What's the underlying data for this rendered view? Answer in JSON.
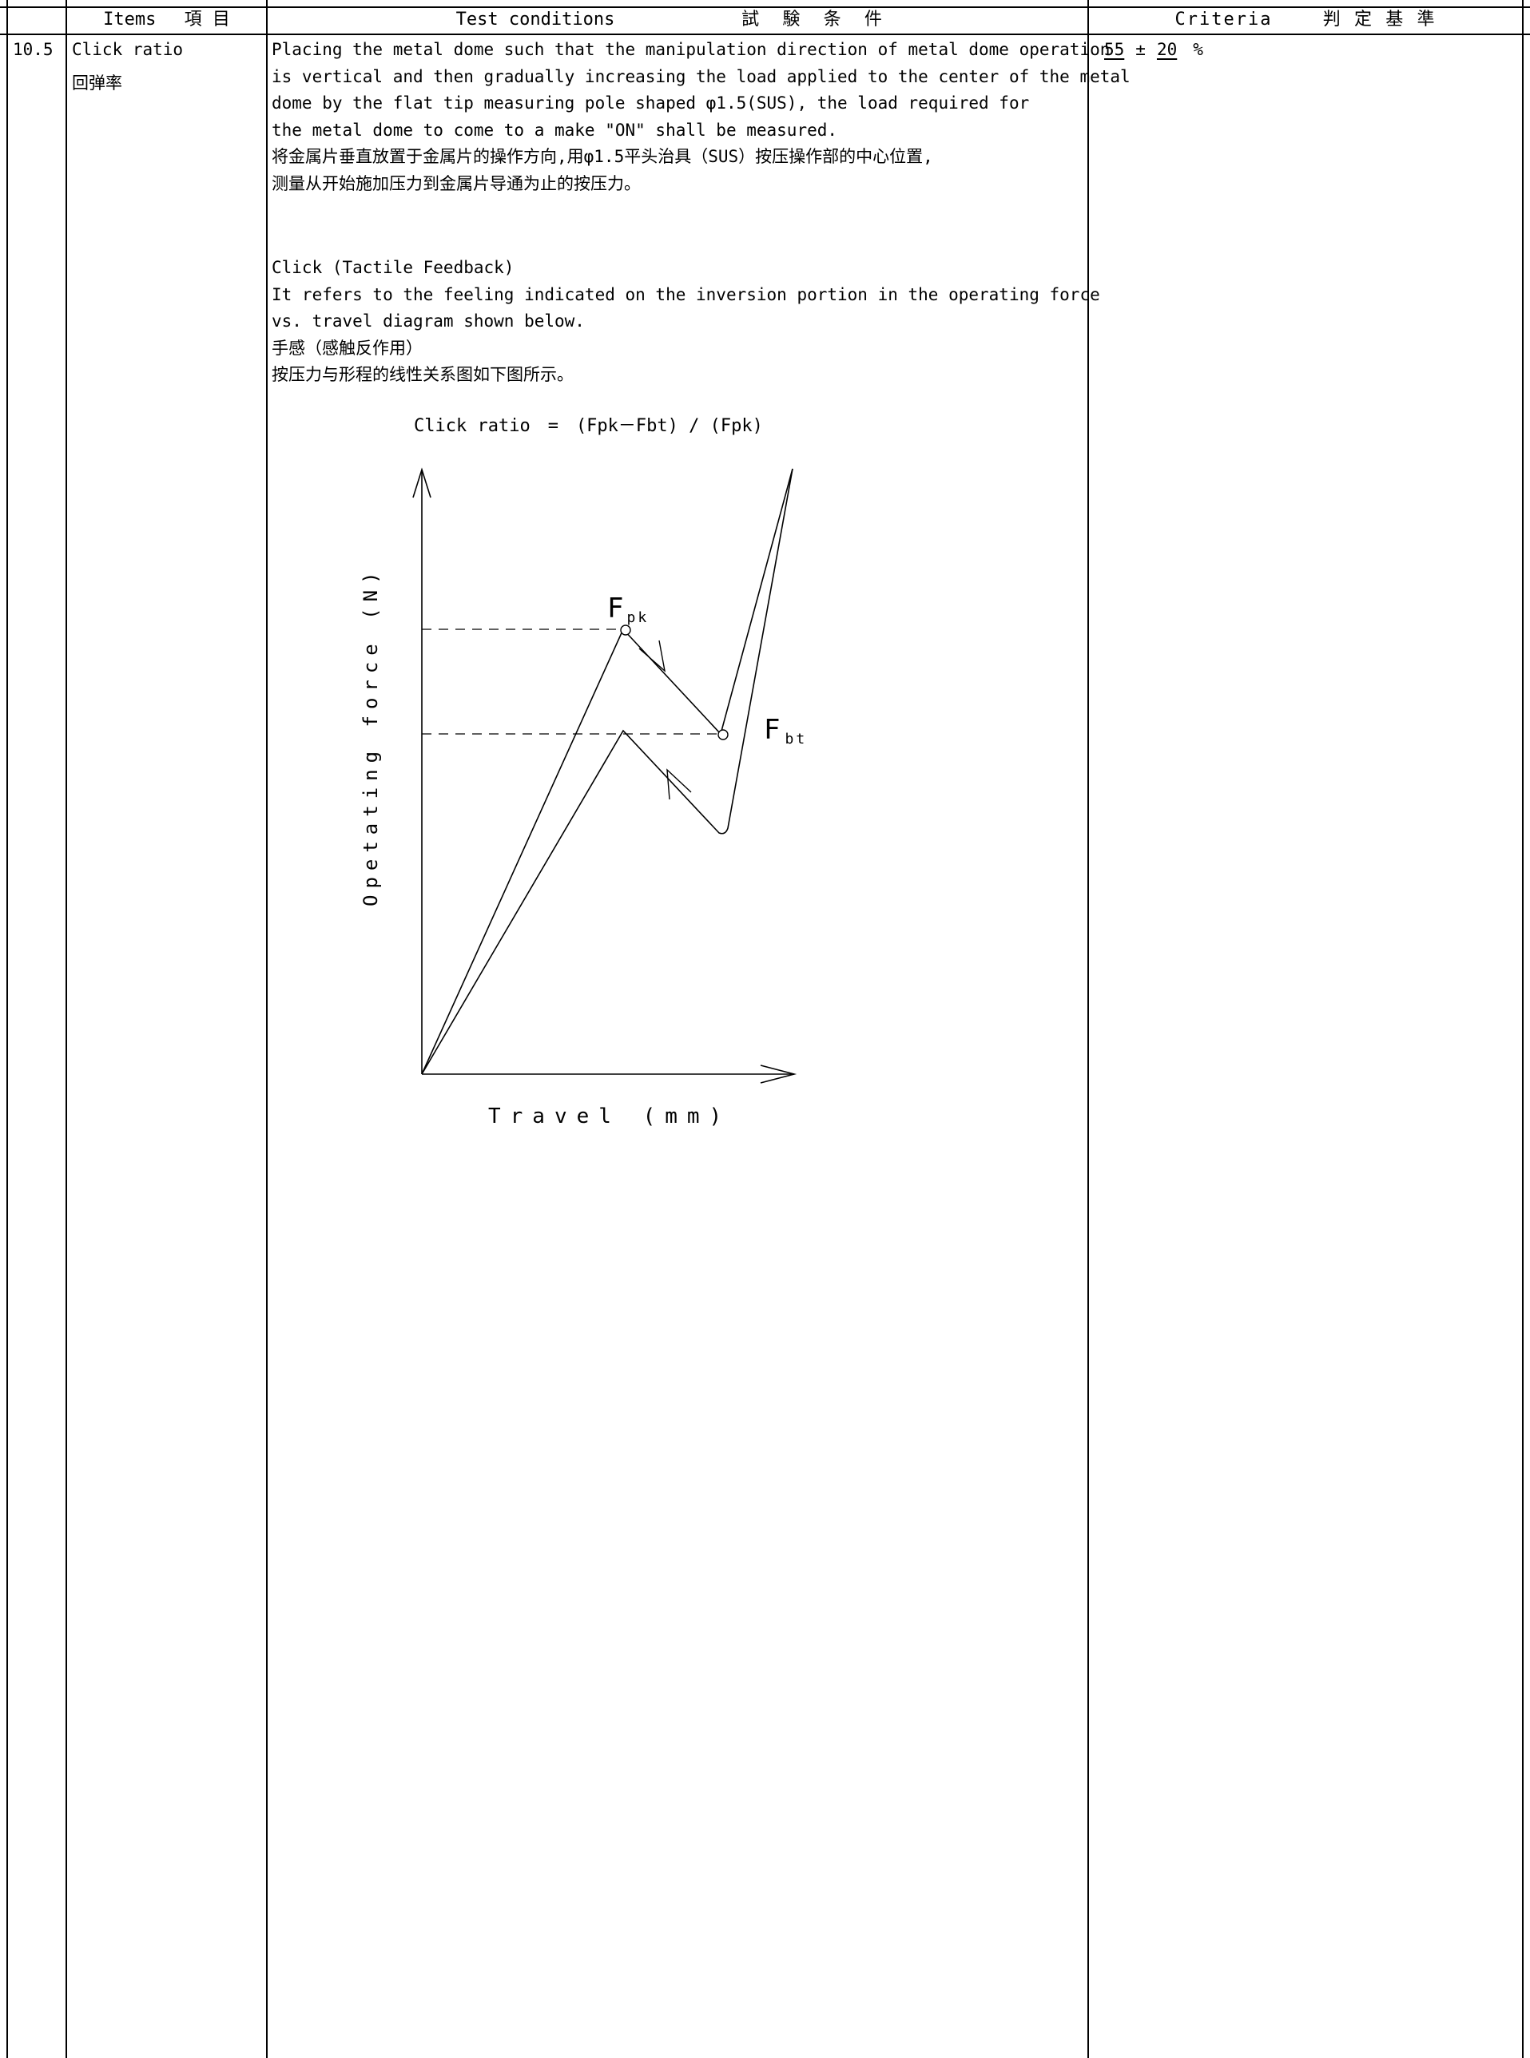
{
  "header": {
    "items_label": "Items　 項 目",
    "test_conditions_label": "Test conditions",
    "test_conditions_jp": "試 験 条 件",
    "criteria_label": "Criteria　　 判 定 基 準"
  },
  "row": {
    "number": "10.5",
    "item_en": "Click ratio",
    "item_cn": "回弹率",
    "conditions_en": [
      "Placing the metal dome such that the manipulation direction of metal dome operation",
      "is vertical and then gradually increasing the load applied to the center of the metal",
      "dome by the flat tip measuring pole shaped φ1.5(SUS), the load required for",
      "the metal dome to come to a make \"ON\" shall be measured."
    ],
    "conditions_cn": [
      "将金属片垂直放置于金属片的操作方向,用φ1.5平头治具（SUS）按压操作部的中心位置,",
      "测量从开始施加压力到金属片导通为止的按压力。"
    ],
    "click_lines": [
      "Click (Tactile Feedback)",
      "It refers to the feeling indicated on the inversion portion in the operating force",
      "vs. travel diagram shown below.",
      "手感（感触反作用）",
      "按压力与形程的线性关系图如下图所示。"
    ],
    "criteria": {
      "value": "55",
      "plus_minus": "±",
      "tolerance": "20",
      "unit": "%"
    }
  },
  "diagram": {
    "formula": "Click ratio　=　(Fpk－Fbt) / (Fpk)",
    "y_axis_label": "Opetating force (N)",
    "x_axis_label": "Travel (mm)",
    "peak_label_main": "F",
    "peak_label_sub": "pk",
    "bottom_label_main": "F",
    "bottom_label_sub": "bt"
  }
}
